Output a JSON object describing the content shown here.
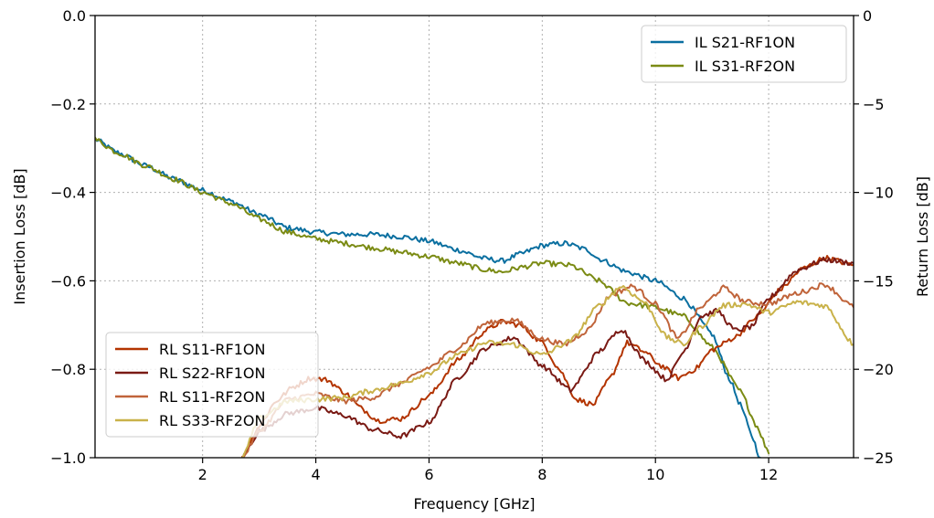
{
  "chart_data": {
    "type": "line",
    "xlabel": "Frequency [GHz]",
    "ylabel_left": "Insertion Loss [dB]",
    "ylabel_right": "Return Loss [dB]",
    "xlim": [
      0.1,
      13.5
    ],
    "ylim_left": [
      -1.0,
      0.0
    ],
    "ylim_right": [
      -25,
      0
    ],
    "x_ticks": [
      2,
      4,
      6,
      8,
      10,
      12
    ],
    "y_ticks_left": [
      0.0,
      -0.2,
      -0.4,
      -0.6,
      -0.8,
      -1.0
    ],
    "y_ticks_left_labels": [
      "0.0",
      "−0.2",
      "−0.4",
      "−0.6",
      "−0.8",
      "−1.0"
    ],
    "y_ticks_right": [
      0,
      -5,
      -10,
      -15,
      -20,
      -25
    ],
    "y_ticks_right_labels": [
      "0",
      "−5",
      "−10",
      "−15",
      "−20",
      "−25"
    ],
    "grid": true,
    "legends": [
      {
        "placement": "top-right",
        "entries": [
          "IL S21-RF1ON",
          "IL S31-RF2ON"
        ]
      },
      {
        "placement": "bottom-left",
        "entries": [
          "RL S11-RF1ON",
          "RL S22-RF1ON",
          "RL S11-RF2ON",
          "RL S33-RF2ON"
        ]
      }
    ],
    "series": [
      {
        "name": "IL S21-RF1ON",
        "axis": "left",
        "color": "#0a6fa0",
        "x": [
          0.1,
          0.5,
          1.0,
          1.5,
          2.0,
          2.5,
          3.0,
          3.5,
          4.0,
          4.5,
          5.0,
          5.5,
          6.0,
          6.5,
          7.0,
          7.3,
          7.6,
          8.0,
          8.4,
          8.8,
          9.0,
          9.5,
          10.0,
          10.5,
          11.0,
          11.3,
          11.5,
          11.7,
          11.85
        ],
        "y": [
          -0.28,
          -0.31,
          -0.34,
          -0.37,
          -0.395,
          -0.42,
          -0.45,
          -0.48,
          -0.49,
          -0.495,
          -0.495,
          -0.5,
          -0.51,
          -0.53,
          -0.55,
          -0.555,
          -0.54,
          -0.52,
          -0.515,
          -0.53,
          -0.55,
          -0.58,
          -0.6,
          -0.64,
          -0.72,
          -0.82,
          -0.88,
          -0.95,
          -1.0
        ]
      },
      {
        "name": "IL S31-RF2ON",
        "axis": "left",
        "color": "#7b8b14",
        "x": [
          0.1,
          0.5,
          1.0,
          1.5,
          2.0,
          2.5,
          3.0,
          3.5,
          4.0,
          4.5,
          5.0,
          5.5,
          6.0,
          6.5,
          7.0,
          7.3,
          7.6,
          8.0,
          8.5,
          9.0,
          9.5,
          10.0,
          10.5,
          11.0,
          11.5,
          11.8,
          12.0
        ],
        "y": [
          -0.28,
          -0.31,
          -0.34,
          -0.37,
          -0.4,
          -0.425,
          -0.46,
          -0.49,
          -0.505,
          -0.515,
          -0.525,
          -0.535,
          -0.545,
          -0.56,
          -0.575,
          -0.58,
          -0.57,
          -0.56,
          -0.565,
          -0.6,
          -0.65,
          -0.66,
          -0.68,
          -0.75,
          -0.85,
          -0.93,
          -0.99
        ]
      },
      {
        "name": "RL S11-RF1ON",
        "axis": "right",
        "color": "#b33400",
        "x": [
          2.7,
          3.0,
          3.3,
          3.6,
          3.9,
          4.2,
          4.5,
          4.8,
          5.1,
          5.5,
          6.0,
          6.5,
          7.0,
          7.3,
          7.6,
          8.0,
          8.3,
          8.6,
          8.9,
          9.2,
          9.5,
          9.8,
          10.1,
          10.4,
          10.7,
          11.0,
          11.4,
          11.8,
          12.2,
          12.6,
          13.0,
          13.5
        ],
        "y": [
          -25,
          -23.2,
          -21.8,
          -21.0,
          -20.5,
          -20.6,
          -21.3,
          -22.2,
          -22.9,
          -22.8,
          -21.5,
          -19.5,
          -17.8,
          -17.3,
          -17.5,
          -18.5,
          -20.0,
          -21.7,
          -22.0,
          -20.5,
          -18.5,
          -19.0,
          -19.8,
          -20.5,
          -20.0,
          -18.9,
          -18.2,
          -17.0,
          -15.5,
          -14.3,
          -13.7,
          -14.1
        ]
      },
      {
        "name": "RL S22-RF1ON",
        "axis": "right",
        "color": "#7a1a14",
        "x": [
          2.7,
          3.0,
          3.5,
          4.0,
          4.5,
          5.0,
          5.5,
          6.0,
          6.5,
          7.0,
          7.5,
          8.0,
          8.5,
          9.0,
          9.4,
          9.8,
          10.2,
          10.5,
          10.8,
          11.1,
          11.4,
          11.7,
          12.0,
          12.5,
          13.0,
          13.5
        ],
        "y": [
          -25,
          -23.5,
          -22.5,
          -22.2,
          -22.6,
          -23.4,
          -23.8,
          -23.0,
          -20.5,
          -18.8,
          -18.2,
          -19.8,
          -21.2,
          -19.0,
          -17.7,
          -19.5,
          -20.6,
          -19.0,
          -17.0,
          -16.7,
          -17.8,
          -17.6,
          -16.0,
          -14.4,
          -13.8,
          -14.0
        ]
      },
      {
        "name": "RL S11-RF2ON",
        "axis": "right",
        "color": "#c0643a",
        "x": [
          2.7,
          3.0,
          3.5,
          4.0,
          4.5,
          5.0,
          5.5,
          6.0,
          6.5,
          7.0,
          7.5,
          8.0,
          8.4,
          8.8,
          9.2,
          9.6,
          10.0,
          10.4,
          10.8,
          11.2,
          11.6,
          12.0,
          12.5,
          13.0,
          13.5
        ],
        "y": [
          -25,
          -23.5,
          -21.7,
          -21.4,
          -21.8,
          -21.6,
          -20.8,
          -19.9,
          -18.8,
          -17.4,
          -17.2,
          -18.3,
          -18.6,
          -17.8,
          -15.8,
          -15.3,
          -16.3,
          -18.3,
          -16.5,
          -15.4,
          -16.2,
          -16.3,
          -15.7,
          -15.2,
          -16.5
        ]
      },
      {
        "name": "RL S33-RF2ON",
        "axis": "right",
        "color": "#c9b24a",
        "x": [
          2.7,
          3.0,
          3.5,
          4.0,
          4.5,
          5.0,
          5.5,
          6.0,
          6.5,
          7.0,
          7.5,
          8.0,
          8.5,
          9.0,
          9.4,
          9.8,
          10.2,
          10.5,
          10.8,
          11.2,
          11.6,
          12.0,
          12.5,
          13.0,
          13.5
        ],
        "y": [
          -25,
          -22.8,
          -21.8,
          -21.7,
          -21.6,
          -21.2,
          -20.8,
          -20.2,
          -19.2,
          -18.5,
          -18.6,
          -19.2,
          -18.4,
          -16.4,
          -15.3,
          -16.2,
          -18.2,
          -18.6,
          -17.6,
          -16.4,
          -16.3,
          -16.8,
          -16.2,
          -16.4,
          -18.6
        ]
      }
    ]
  }
}
